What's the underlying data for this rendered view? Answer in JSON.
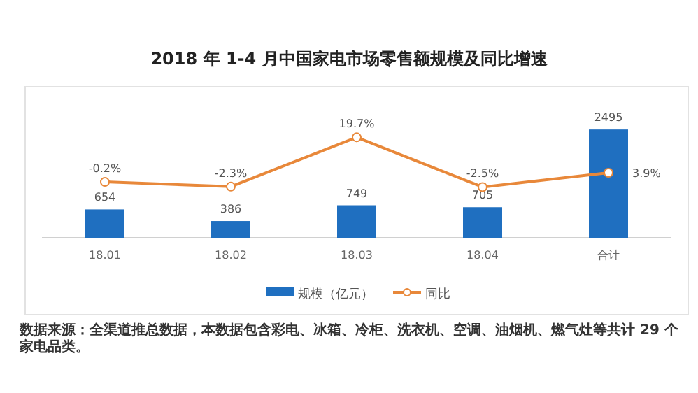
{
  "chart_data": {
    "type": "bar",
    "title": "2018 年 1-4 月中国家电市场零售额规模及同比增速",
    "categories": [
      "18.01",
      "18.02",
      "18.03",
      "18.04",
      "合计"
    ],
    "series": [
      {
        "name": "规模（亿元）",
        "color": "#1f6fc0",
        "values": [
          654,
          386,
          749,
          705,
          2495
        ],
        "value_labels": [
          "654",
          "386",
          "749",
          "705",
          "2495"
        ]
      },
      {
        "name": "同比",
        "type": "line",
        "axis": "y2",
        "color": "#e8883a",
        "marker": "circle",
        "values": [
          -0.2,
          -2.3,
          19.7,
          -2.5,
          3.9
        ],
        "value_labels": [
          "-0.2%",
          "-2.3%",
          "19.7%",
          "-2.5%",
          "3.9%"
        ]
      }
    ],
    "grid": false,
    "legend": "bottom",
    "annotations": [
      "数据来源：全渠道推总数据，本数据包含彩电、冰箱、冷柜、洗衣机、空调、油烟机、燃气灶等共计 29 个家电品类。"
    ]
  }
}
